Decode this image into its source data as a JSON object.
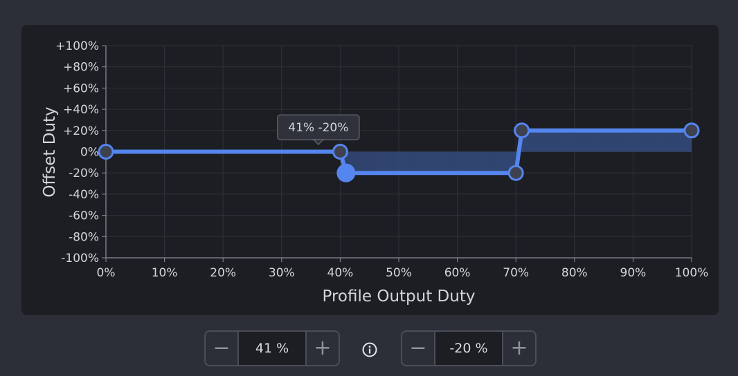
{
  "chart_data": {
    "type": "line",
    "xlabel": "Profile Output Duty",
    "ylabel": "Offset Duty",
    "xlim": [
      0,
      100
    ],
    "ylim": [
      -100,
      100
    ],
    "x_ticks": [
      "0%",
      "10%",
      "20%",
      "30%",
      "40%",
      "50%",
      "60%",
      "70%",
      "80%",
      "90%",
      "100%"
    ],
    "y_ticks": [
      "+100%",
      "+80%",
      "+60%",
      "+40%",
      "+20%",
      "0%",
      "-20%",
      "-40%",
      "-60%",
      "-80%",
      "-100%"
    ],
    "grid": true,
    "series": [
      {
        "points": [
          {
            "x": 0,
            "y": 0
          },
          {
            "x": 40,
            "y": 0
          },
          {
            "x": 41,
            "y": -20
          },
          {
            "x": 70,
            "y": -20
          },
          {
            "x": 71,
            "y": 20
          },
          {
            "x": 100,
            "y": 20
          }
        ],
        "selected_index": 2
      }
    ],
    "tooltip": "41% -20%",
    "colors": {
      "line": "#5585ee",
      "fill": "#33497a",
      "grid": "#2f3238",
      "axis": "#8a8f99",
      "text": "#d4d6dc"
    }
  },
  "controls": {
    "duty_value": "41 %",
    "offset_value": "-20 %",
    "minus_icon": "minus-icon",
    "plus_icon": "plus-icon",
    "info_icon": "info-icon"
  }
}
